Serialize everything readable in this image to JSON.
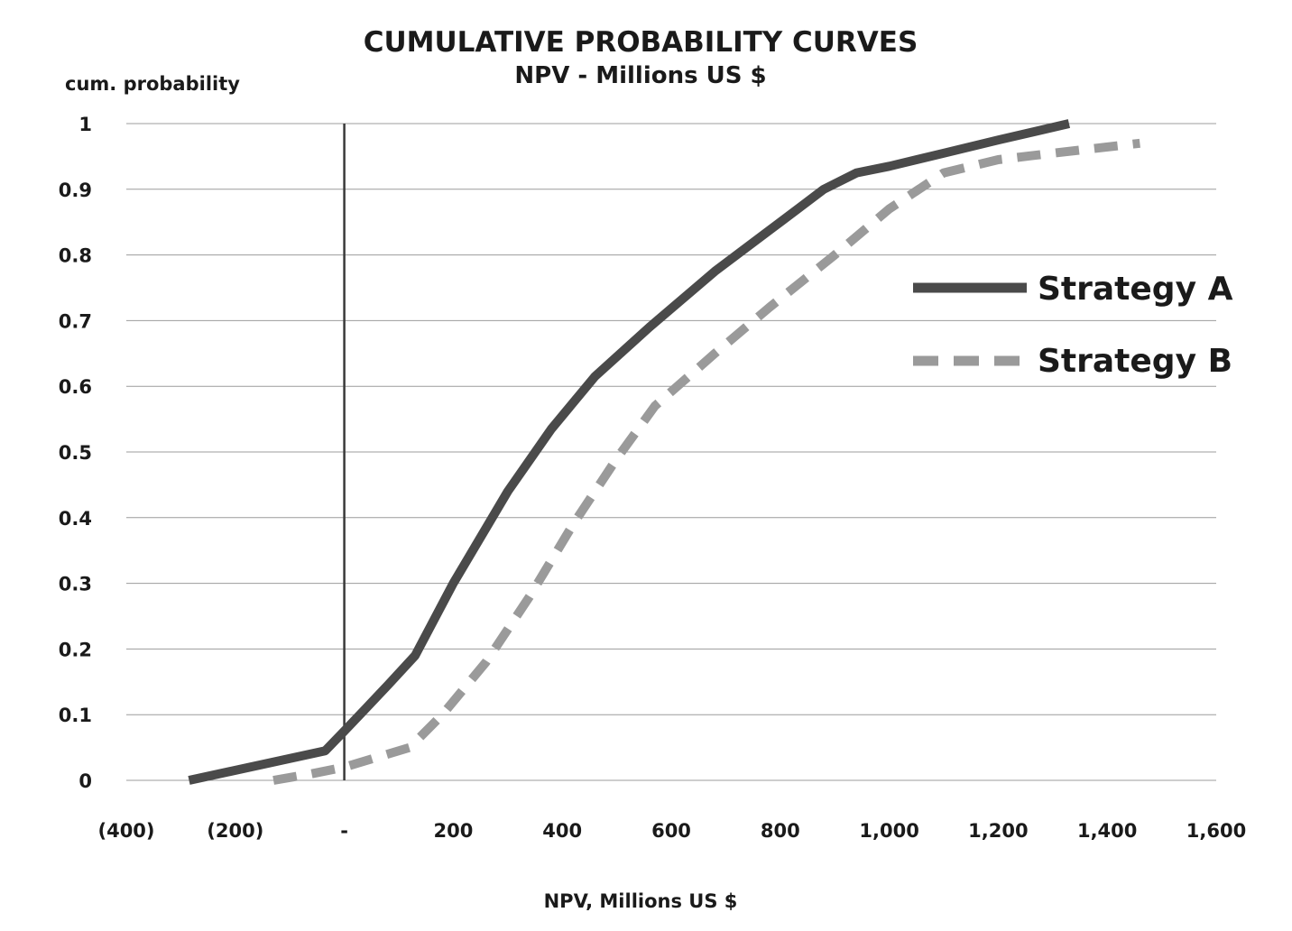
{
  "chart_data": {
    "type": "line",
    "title": "CUMULATIVE PROBABILITY CURVES",
    "subtitle": "NPV - Millions US $",
    "xlabel": "NPV, Millions US $",
    "ylabel": "cum. probability",
    "xlim": [
      -400,
      1600
    ],
    "ylim": [
      0,
      1
    ],
    "x_ticks": [
      -400,
      -200,
      0,
      200,
      400,
      600,
      800,
      1000,
      1200,
      1400,
      1600
    ],
    "x_tick_labels": [
      "(400)",
      "(200)",
      "-",
      "200",
      "400",
      "600",
      "800",
      "1,000",
      "1,200",
      "1,400",
      "1,600"
    ],
    "y_ticks": [
      0,
      0.1,
      0.2,
      0.3,
      0.4,
      0.5,
      0.6,
      0.7,
      0.8,
      0.9,
      1
    ],
    "y_tick_labels": [
      "0",
      "0.1",
      "0.2",
      "0.3",
      "0.4",
      "0.5",
      "0.6",
      "0.7",
      "0.8",
      "0.9",
      "1"
    ],
    "grid": "horizontal",
    "reference_line_x": 0,
    "legend_position": "right",
    "series": [
      {
        "name": "Strategy A",
        "style": "solid",
        "color": "#4a4a4a",
        "x": [
          -285,
          -35,
          0,
          40,
          80,
          130,
          200,
          300,
          380,
          460,
          560,
          680,
          800,
          880,
          940,
          1000,
          1100,
          1200,
          1330
        ],
        "y": [
          0,
          0.045,
          0.075,
          0.11,
          0.145,
          0.19,
          0.3,
          0.44,
          0.535,
          0.615,
          0.69,
          0.775,
          0.85,
          0.9,
          0.925,
          0.935,
          0.955,
          0.975,
          1.0
        ]
      },
      {
        "name": "Strategy B",
        "style": "dashed",
        "color": "#9a9a9a",
        "x": [
          -130,
          -60,
          0,
          60,
          120,
          180,
          260,
          340,
          420,
          500,
          570,
          680,
          780,
          900,
          1000,
          1100,
          1200,
          1300,
          1460
        ],
        "y": [
          0,
          0.01,
          0.02,
          0.035,
          0.05,
          0.1,
          0.18,
          0.28,
          0.39,
          0.49,
          0.57,
          0.65,
          0.72,
          0.8,
          0.87,
          0.925,
          0.945,
          0.955,
          0.97
        ]
      }
    ]
  }
}
